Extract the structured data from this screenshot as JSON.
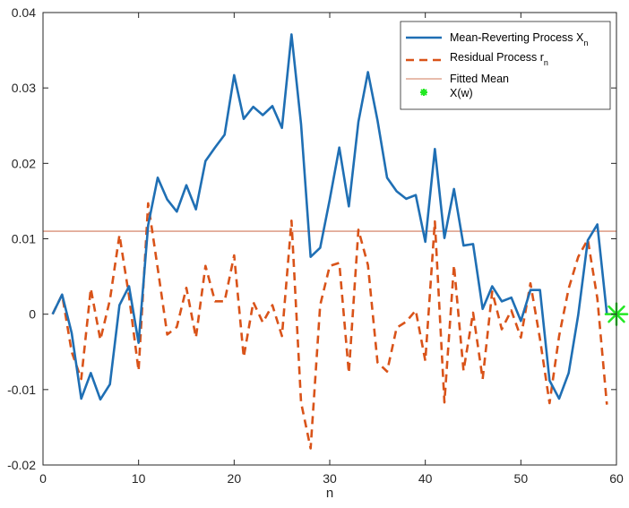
{
  "chart_data": {
    "type": "line",
    "xlabel": "n",
    "ylabel": "",
    "title": "",
    "xlim": [
      0,
      60
    ],
    "ylim": [
      -0.02,
      0.04
    ],
    "xticks": [
      0,
      10,
      20,
      30,
      40,
      50,
      60
    ],
    "xtick_labels": [
      "0",
      "10",
      "20",
      "30",
      "40",
      "50",
      "60"
    ],
    "yticks": [
      -0.02,
      -0.01,
      0,
      0.01,
      0.02,
      0.03,
      0.04
    ],
    "ytick_labels": [
      "-0.02",
      "-0.01",
      "0",
      "0.01",
      "0.02",
      "0.03",
      "0.04"
    ],
    "grid": false,
    "legend_position": "top-right",
    "x": [
      1,
      2,
      3,
      4,
      5,
      6,
      7,
      8,
      9,
      10,
      11,
      12,
      13,
      14,
      15,
      16,
      17,
      18,
      19,
      20,
      21,
      22,
      23,
      24,
      25,
      26,
      27,
      28,
      29,
      30,
      31,
      32,
      33,
      34,
      35,
      36,
      37,
      38,
      39,
      40,
      41,
      42,
      43,
      44,
      45,
      46,
      47,
      48,
      49,
      50,
      51,
      52,
      53,
      54,
      55,
      56,
      57,
      58,
      59
    ],
    "series": [
      {
        "name": "Mean-Reverting Process X",
        "name_subscript": "n",
        "style": "solid",
        "color": "#1f6fb4",
        "values": [
          0,
          0.0026,
          -0.0025,
          -0.0112,
          -0.0078,
          -0.0113,
          -0.0093,
          0.0012,
          0.0037,
          -0.0038,
          0.0118,
          0.0181,
          0.0152,
          0.0136,
          0.0171,
          0.0139,
          0.0203,
          0.0221,
          0.0238,
          0.0317,
          0.0259,
          0.0275,
          0.0264,
          0.0276,
          0.0247,
          0.0371,
          0.0252,
          0.0076,
          0.0088,
          0.0152,
          0.0221,
          0.0143,
          0.0255,
          0.0321,
          0.0257,
          0.0181,
          0.0163,
          0.0153,
          0.0158,
          0.0096,
          0.0219,
          0.0101,
          0.0166,
          0.0091,
          0.0093,
          0.0007,
          0.0037,
          0.0017,
          0.0022,
          -0.0009,
          0.0032,
          0.0032,
          -0.0088,
          -0.0112,
          -0.0078,
          -0.0001,
          0.0098,
          0.0119,
          0
        ]
      },
      {
        "name": "Residual Process r",
        "name_subscript": "n",
        "style": "dashed",
        "color": "#d95319",
        "values": [
          0,
          0.0026,
          -0.005,
          -0.0086,
          0.0034,
          -0.0034,
          0.0019,
          0.0105,
          0.0024,
          -0.0075,
          0.0147,
          0.0061,
          -0.0027,
          -0.0017,
          0.0035,
          -0.0031,
          0.0064,
          0.0017,
          0.0017,
          0.0078,
          -0.0057,
          0.0016,
          -0.0011,
          0.0012,
          -0.0029,
          0.0124,
          -0.0117,
          -0.0178,
          0.0012,
          0.0064,
          0.0068,
          -0.0078,
          0.0112,
          0.0065,
          -0.0064,
          -0.0076,
          -0.0018,
          -0.001,
          0.0005,
          -0.0062,
          0.0123,
          -0.0117,
          0.0065,
          -0.0075,
          0.0002,
          -0.0086,
          0.003,
          -0.002,
          0.0005,
          -0.0031,
          0.0041,
          -0.0033,
          -0.0118,
          -0.0029,
          0.0034,
          0.0076,
          0.0099,
          0.0021,
          -0.012
        ]
      },
      {
        "name": "Fitted Mean",
        "style": "solid-thin",
        "color": "#d0785a",
        "constant": 0.011
      },
      {
        "name": "X(w)",
        "style": "marker",
        "marker": "asterisk",
        "color": "#22e822",
        "x": [
          60
        ],
        "values": [
          0
        ]
      }
    ]
  }
}
